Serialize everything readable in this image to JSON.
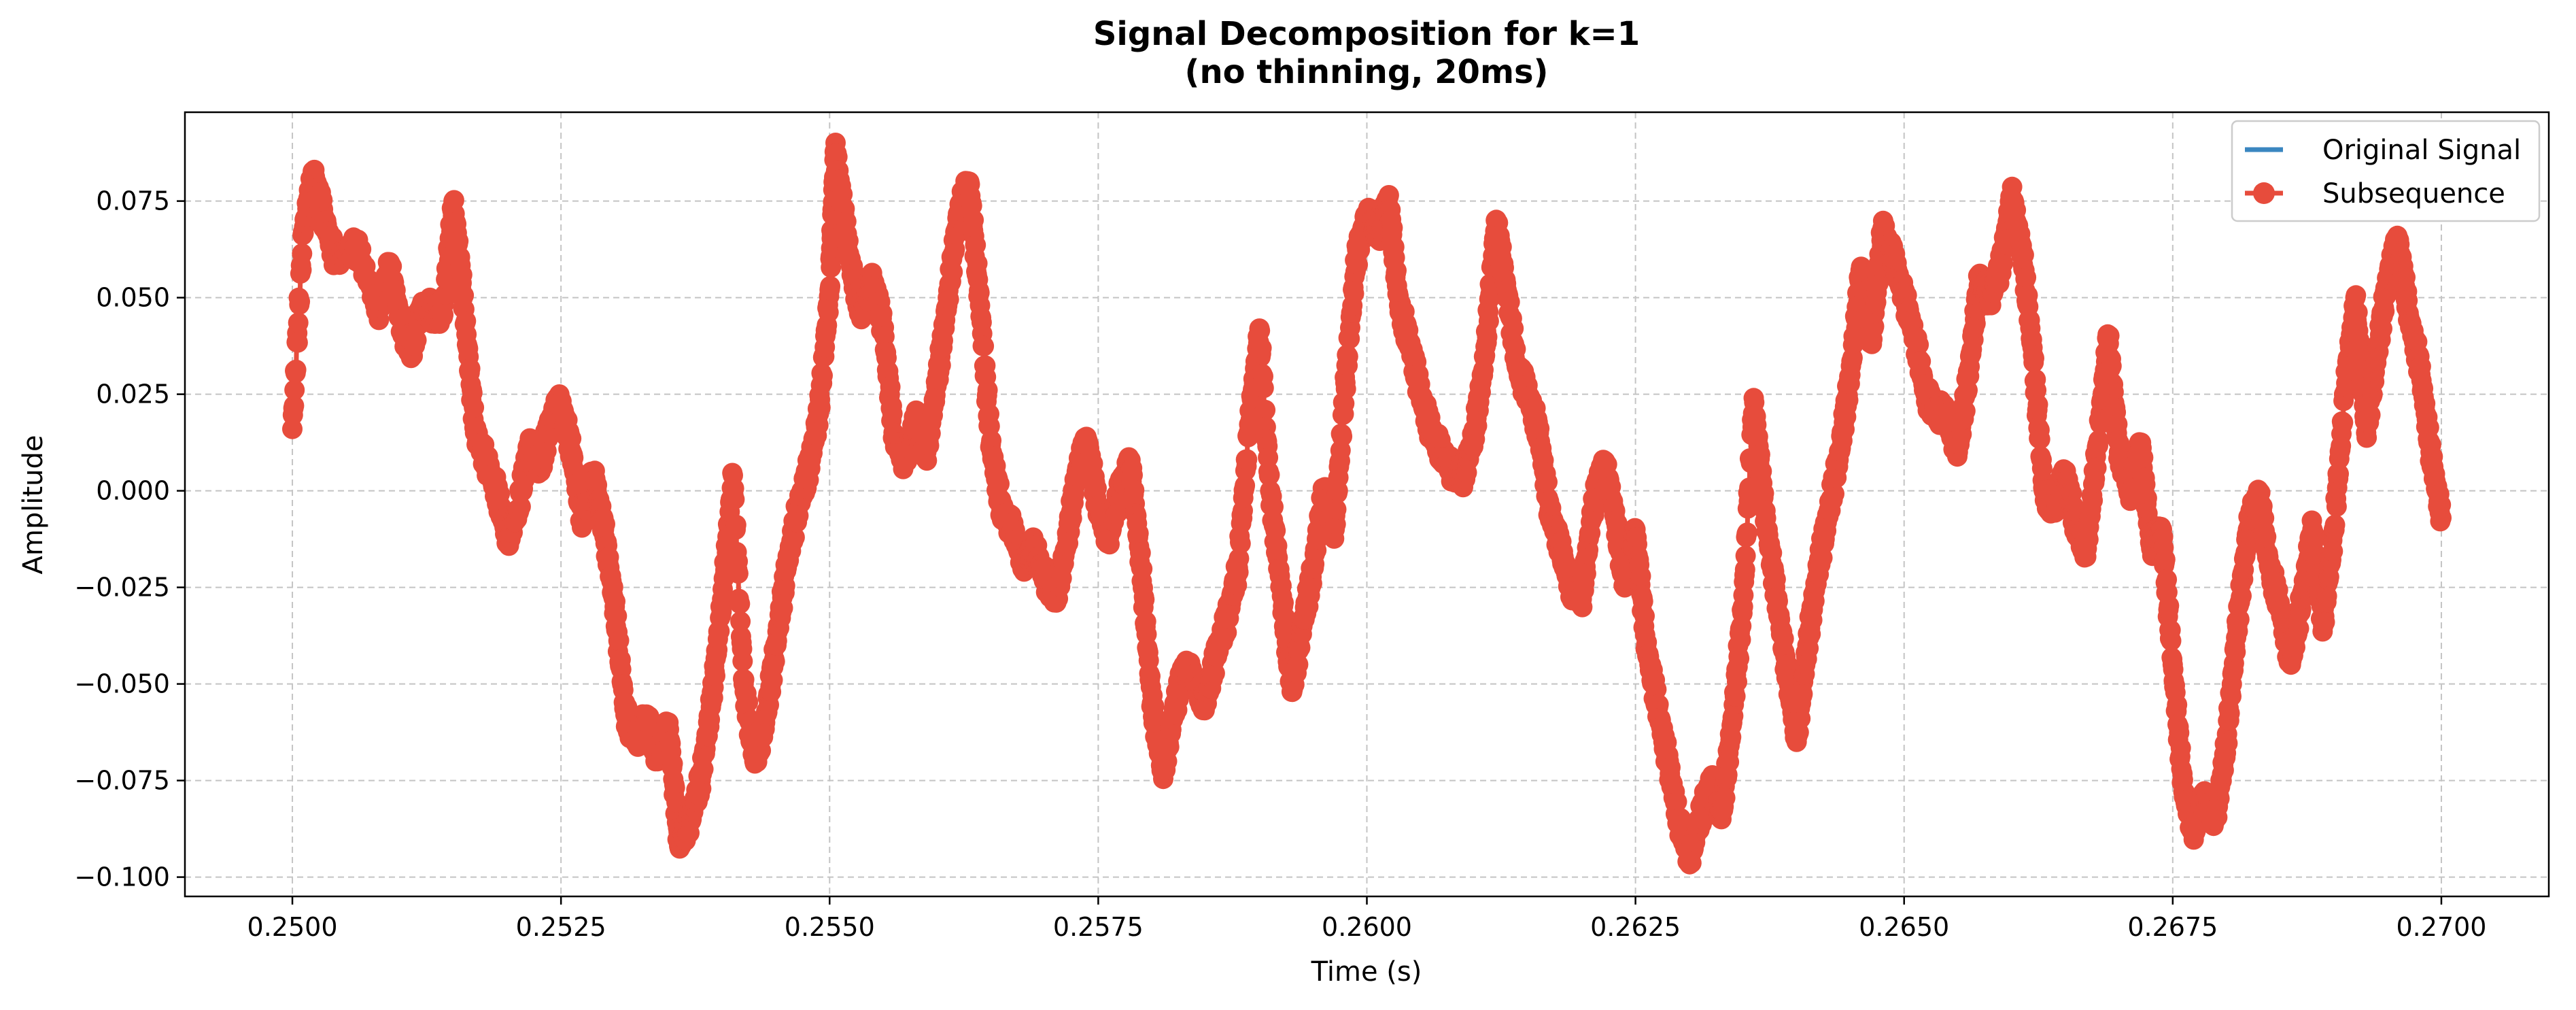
{
  "chart_data": {
    "type": "line",
    "title": "Signal Decomposition for k=1",
    "subtitle": "(no thinning, 20ms)",
    "xlabel": "Time (s)",
    "ylabel": "Amplitude",
    "xlim": [
      0.249,
      0.271
    ],
    "ylim": [
      -0.105,
      0.098
    ],
    "x_ticks": [
      0.25,
      0.2525,
      0.255,
      0.2575,
      0.26,
      0.2625,
      0.265,
      0.2675,
      0.27
    ],
    "x_tick_labels": [
      "0.2500",
      "0.2525",
      "0.2550",
      "0.2575",
      "0.2600",
      "0.2625",
      "0.2650",
      "0.2675",
      "0.2700"
    ],
    "y_ticks": [
      -0.1,
      -0.075,
      -0.05,
      -0.025,
      0.0,
      0.025,
      0.05,
      0.075
    ],
    "y_tick_labels": [
      "−0.100",
      "−0.075",
      "−0.050",
      "−0.025",
      "0.000",
      "0.025",
      "0.050",
      "0.075"
    ],
    "grid": true,
    "legend_position": "top-right",
    "series": [
      {
        "name": "Original Signal",
        "color": "#3a86c0",
        "marker": "none",
        "keypoints": [
          [
            0.25,
            0.016
          ],
          [
            0.2501,
            0.067
          ],
          [
            0.2502,
            0.082
          ],
          [
            0.2503,
            0.07
          ],
          [
            0.2504,
            0.06
          ],
          [
            0.2506,
            0.063
          ],
          [
            0.2508,
            0.047
          ],
          [
            0.2509,
            0.058
          ],
          [
            0.251,
            0.045
          ],
          [
            0.2511,
            0.035
          ],
          [
            0.2512,
            0.048
          ],
          [
            0.2514,
            0.045
          ],
          [
            0.2515,
            0.075
          ],
          [
            0.2516,
            0.047
          ],
          [
            0.2517,
            0.015
          ],
          [
            0.2518,
            0.008
          ],
          [
            0.2519,
            0.0
          ],
          [
            0.252,
            -0.012
          ],
          [
            0.2521,
            -0.005
          ],
          [
            0.2522,
            0.012
          ],
          [
            0.2523,
            0.005
          ],
          [
            0.2524,
            0.018
          ],
          [
            0.2525,
            0.023
          ],
          [
            0.2526,
            0.01
          ],
          [
            0.2527,
            -0.008
          ],
          [
            0.2528,
            0.005
          ],
          [
            0.2529,
            -0.01
          ],
          [
            0.253,
            -0.03
          ],
          [
            0.2531,
            -0.058
          ],
          [
            0.2532,
            -0.065
          ],
          [
            0.2533,
            -0.058
          ],
          [
            0.2534,
            -0.07
          ],
          [
            0.2535,
            -0.06
          ],
          [
            0.2536,
            -0.092
          ],
          [
            0.2537,
            -0.085
          ],
          [
            0.2538,
            -0.075
          ],
          [
            0.2539,
            -0.055
          ],
          [
            0.254,
            -0.028
          ],
          [
            0.2541,
            0.004
          ],
          [
            0.2542,
            -0.05
          ],
          [
            0.2543,
            -0.07
          ],
          [
            0.2544,
            -0.06
          ],
          [
            0.2545,
            -0.04
          ],
          [
            0.2546,
            -0.02
          ],
          [
            0.2547,
            -0.005
          ],
          [
            0.2548,
            0.005
          ],
          [
            0.2549,
            0.02
          ],
          [
            0.255,
            0.052
          ],
          [
            0.25505,
            0.088
          ],
          [
            0.2551,
            0.078
          ],
          [
            0.2552,
            0.058
          ],
          [
            0.2553,
            0.045
          ],
          [
            0.2554,
            0.055
          ],
          [
            0.2555,
            0.042
          ],
          [
            0.2556,
            0.014
          ],
          [
            0.2557,
            0.008
          ],
          [
            0.2558,
            0.018
          ],
          [
            0.2559,
            0.01
          ],
          [
            0.256,
            0.028
          ],
          [
            0.2561,
            0.05
          ],
          [
            0.2562,
            0.072
          ],
          [
            0.2563,
            0.08
          ],
          [
            0.2564,
            0.048
          ],
          [
            0.2565,
            0.012
          ],
          [
            0.2566,
            -0.005
          ],
          [
            0.2567,
            -0.01
          ],
          [
            0.2568,
            -0.018
          ],
          [
            0.2569,
            -0.015
          ],
          [
            0.257,
            -0.022
          ],
          [
            0.2571,
            -0.028
          ],
          [
            0.2572,
            -0.015
          ],
          [
            0.2573,
            0.005
          ],
          [
            0.2574,
            0.013
          ],
          [
            0.2575,
            -0.005
          ],
          [
            0.2576,
            -0.012
          ],
          [
            0.2577,
            0.0
          ],
          [
            0.2578,
            0.008
          ],
          [
            0.2579,
            -0.02
          ],
          [
            0.258,
            -0.055
          ],
          [
            0.2581,
            -0.073
          ],
          [
            0.2582,
            -0.058
          ],
          [
            0.2583,
            -0.045
          ],
          [
            0.2584,
            -0.05
          ],
          [
            0.2585,
            -0.055
          ],
          [
            0.2586,
            -0.042
          ],
          [
            0.2587,
            -0.033
          ],
          [
            0.2588,
            -0.02
          ],
          [
            0.2589,
            0.015
          ],
          [
            0.259,
            0.042
          ],
          [
            0.2591,
            0.0
          ],
          [
            0.2592,
            -0.025
          ],
          [
            0.2593,
            -0.052
          ],
          [
            0.2594,
            -0.035
          ],
          [
            0.2595,
            -0.02
          ],
          [
            0.2596,
            0.0
          ],
          [
            0.2597,
            -0.01
          ],
          [
            0.2598,
            0.028
          ],
          [
            0.2599,
            0.06
          ],
          [
            0.26,
            0.072
          ],
          [
            0.2601,
            0.066
          ],
          [
            0.2602,
            0.076
          ],
          [
            0.2603,
            0.048
          ],
          [
            0.2604,
            0.038
          ],
          [
            0.2605,
            0.025
          ],
          [
            0.2606,
            0.015
          ],
          [
            0.2607,
            0.01
          ],
          [
            0.2608,
            0.005
          ],
          [
            0.2609,
            0.004
          ],
          [
            0.261,
            0.015
          ],
          [
            0.2611,
            0.035
          ],
          [
            0.2612,
            0.07
          ],
          [
            0.2613,
            0.052
          ],
          [
            0.2614,
            0.032
          ],
          [
            0.2615,
            0.025
          ],
          [
            0.2616,
            0.015
          ],
          [
            0.2617,
            -0.005
          ],
          [
            0.2618,
            -0.015
          ],
          [
            0.2619,
            -0.025
          ],
          [
            0.262,
            -0.028
          ],
          [
            0.2621,
            -0.005
          ],
          [
            0.2622,
            0.008
          ],
          [
            0.2623,
            -0.005
          ],
          [
            0.2624,
            -0.025
          ],
          [
            0.2625,
            -0.01
          ],
          [
            0.2626,
            -0.04
          ],
          [
            0.2627,
            -0.055
          ],
          [
            0.2628,
            -0.07
          ],
          [
            0.2629,
            -0.085
          ],
          [
            0.263,
            -0.095
          ],
          [
            0.2631,
            -0.085
          ],
          [
            0.2632,
            -0.075
          ],
          [
            0.2633,
            -0.085
          ],
          [
            0.2634,
            -0.06
          ],
          [
            0.2635,
            -0.03
          ],
          [
            0.2636,
            0.024
          ],
          [
            0.2637,
            -0.005
          ],
          [
            0.2638,
            -0.025
          ],
          [
            0.2639,
            -0.045
          ],
          [
            0.264,
            -0.065
          ],
          [
            0.2641,
            -0.04
          ],
          [
            0.2642,
            -0.02
          ],
          [
            0.2643,
            -0.005
          ],
          [
            0.2644,
            0.01
          ],
          [
            0.2645,
            0.03
          ],
          [
            0.2646,
            0.058
          ],
          [
            0.2647,
            0.038
          ],
          [
            0.2648,
            0.068
          ],
          [
            0.2649,
            0.06
          ],
          [
            0.265,
            0.05
          ],
          [
            0.2651,
            0.04
          ],
          [
            0.2652,
            0.025
          ],
          [
            0.2653,
            0.02
          ],
          [
            0.2654,
            0.02
          ],
          [
            0.2655,
            0.01
          ],
          [
            0.2656,
            0.03
          ],
          [
            0.2657,
            0.055
          ],
          [
            0.2658,
            0.05
          ],
          [
            0.2659,
            0.058
          ],
          [
            0.266,
            0.076
          ],
          [
            0.2661,
            0.062
          ],
          [
            0.2662,
            0.035
          ],
          [
            0.2663,
            0.0
          ],
          [
            0.2664,
            -0.005
          ],
          [
            0.2665,
            0.005
          ],
          [
            0.2666,
            -0.01
          ],
          [
            0.2667,
            -0.015
          ],
          [
            0.2668,
            0.012
          ],
          [
            0.2669,
            0.04
          ],
          [
            0.267,
            0.01
          ],
          [
            0.2671,
            0.0
          ],
          [
            0.2672,
            0.012
          ],
          [
            0.2673,
            -0.015
          ],
          [
            0.2674,
            -0.01
          ],
          [
            0.2675,
            -0.045
          ],
          [
            0.2676,
            -0.078
          ],
          [
            0.2677,
            -0.088
          ],
          [
            0.2678,
            -0.08
          ],
          [
            0.2679,
            -0.085
          ],
          [
            0.268,
            -0.065
          ],
          [
            0.2681,
            -0.035
          ],
          [
            0.2682,
            -0.01
          ],
          [
            0.2683,
            0.0
          ],
          [
            0.2684,
            -0.02
          ],
          [
            0.2685,
            -0.03
          ],
          [
            0.2686,
            -0.045
          ],
          [
            0.2687,
            -0.028
          ],
          [
            0.2688,
            -0.01
          ],
          [
            0.2689,
            -0.035
          ],
          [
            0.269,
            -0.01
          ],
          [
            0.2691,
            0.025
          ],
          [
            0.2692,
            0.05
          ],
          [
            0.2693,
            0.015
          ],
          [
            0.2694,
            0.035
          ],
          [
            0.2695,
            0.055
          ],
          [
            0.2696,
            0.065
          ],
          [
            0.2697,
            0.045
          ],
          [
            0.2698,
            0.032
          ],
          [
            0.2699,
            0.01
          ],
          [
            0.27,
            -0.007
          ]
        ]
      },
      {
        "name": "Subsequence",
        "color": "#e74c3c",
        "marker": "circle",
        "same_as": "Original Signal"
      }
    ]
  }
}
